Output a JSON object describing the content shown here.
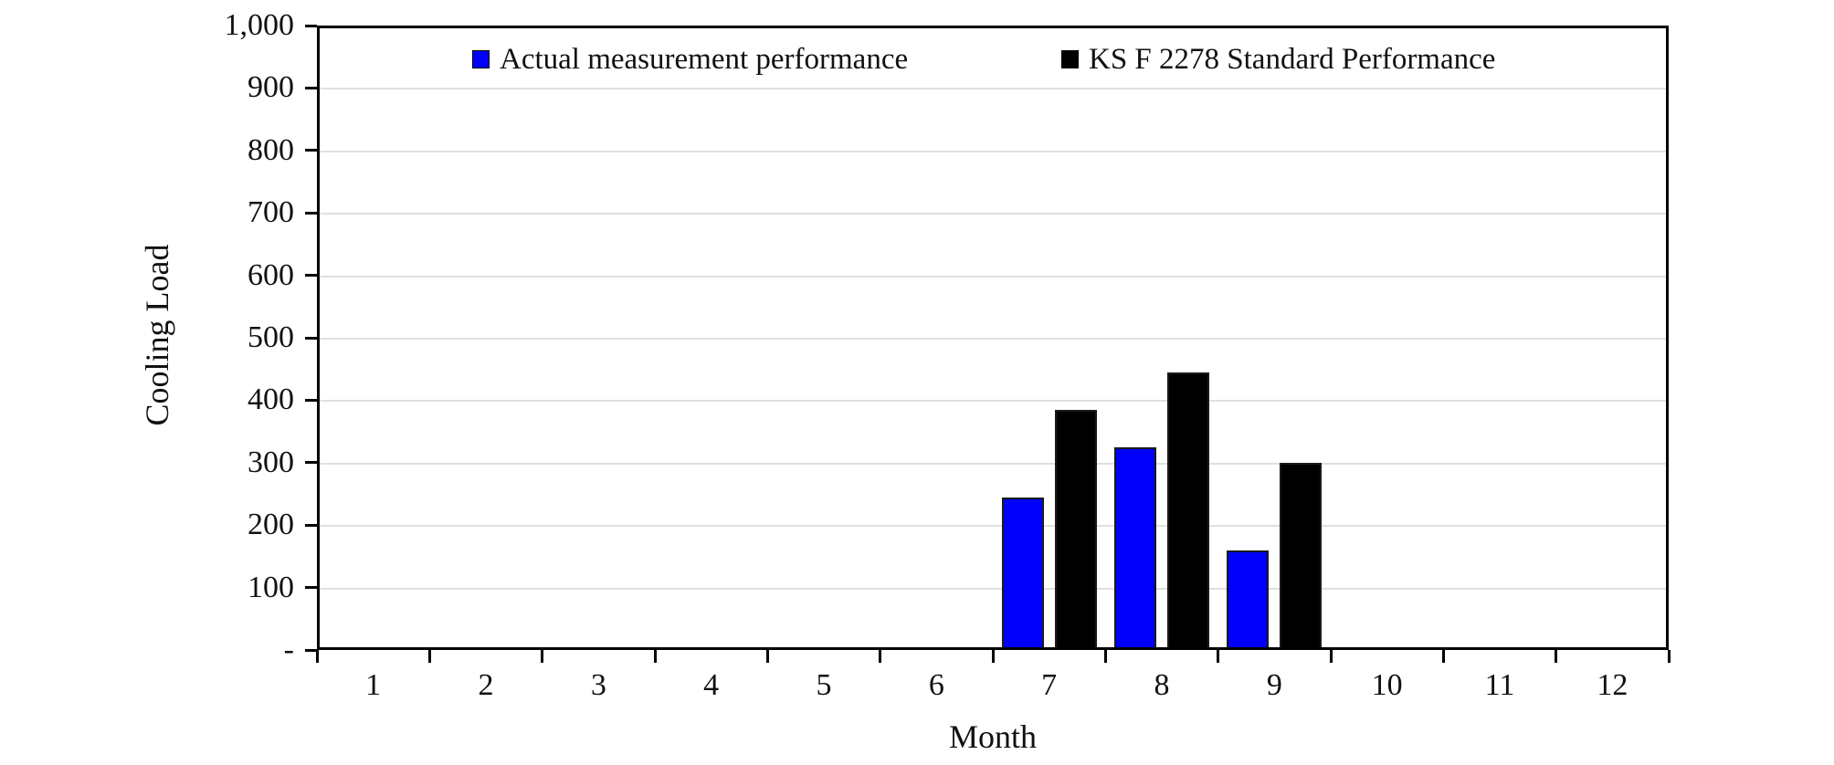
{
  "chart_data": {
    "type": "bar",
    "title": "",
    "xlabel": "Month",
    "ylabel": "Cooling Load",
    "categories": [
      "1",
      "2",
      "3",
      "4",
      "5",
      "6",
      "7",
      "8",
      "9",
      "10",
      "11",
      "12"
    ],
    "series": [
      {
        "name": "Actual measurement performance",
        "color": "#0000fa",
        "values": [
          0,
          0,
          0,
          0,
          0,
          0,
          240,
          320,
          155,
          0,
          0,
          0
        ]
      },
      {
        "name": "KS F 2278 Standard Performance",
        "color": "#000000",
        "values": [
          0,
          0,
          0,
          0,
          0,
          0,
          380,
          440,
          295,
          0,
          0,
          0
        ]
      }
    ],
    "ylim": [
      0,
      1000
    ],
    "ytick_step": 100,
    "ytick_labels": [
      "-",
      "100",
      "200",
      "300",
      "400",
      "500",
      "600",
      "700",
      "800",
      "900",
      "1,000"
    ],
    "grid": "horizontal",
    "gridline_color": "#e0e0e0",
    "legend_position": "top-inside"
  }
}
